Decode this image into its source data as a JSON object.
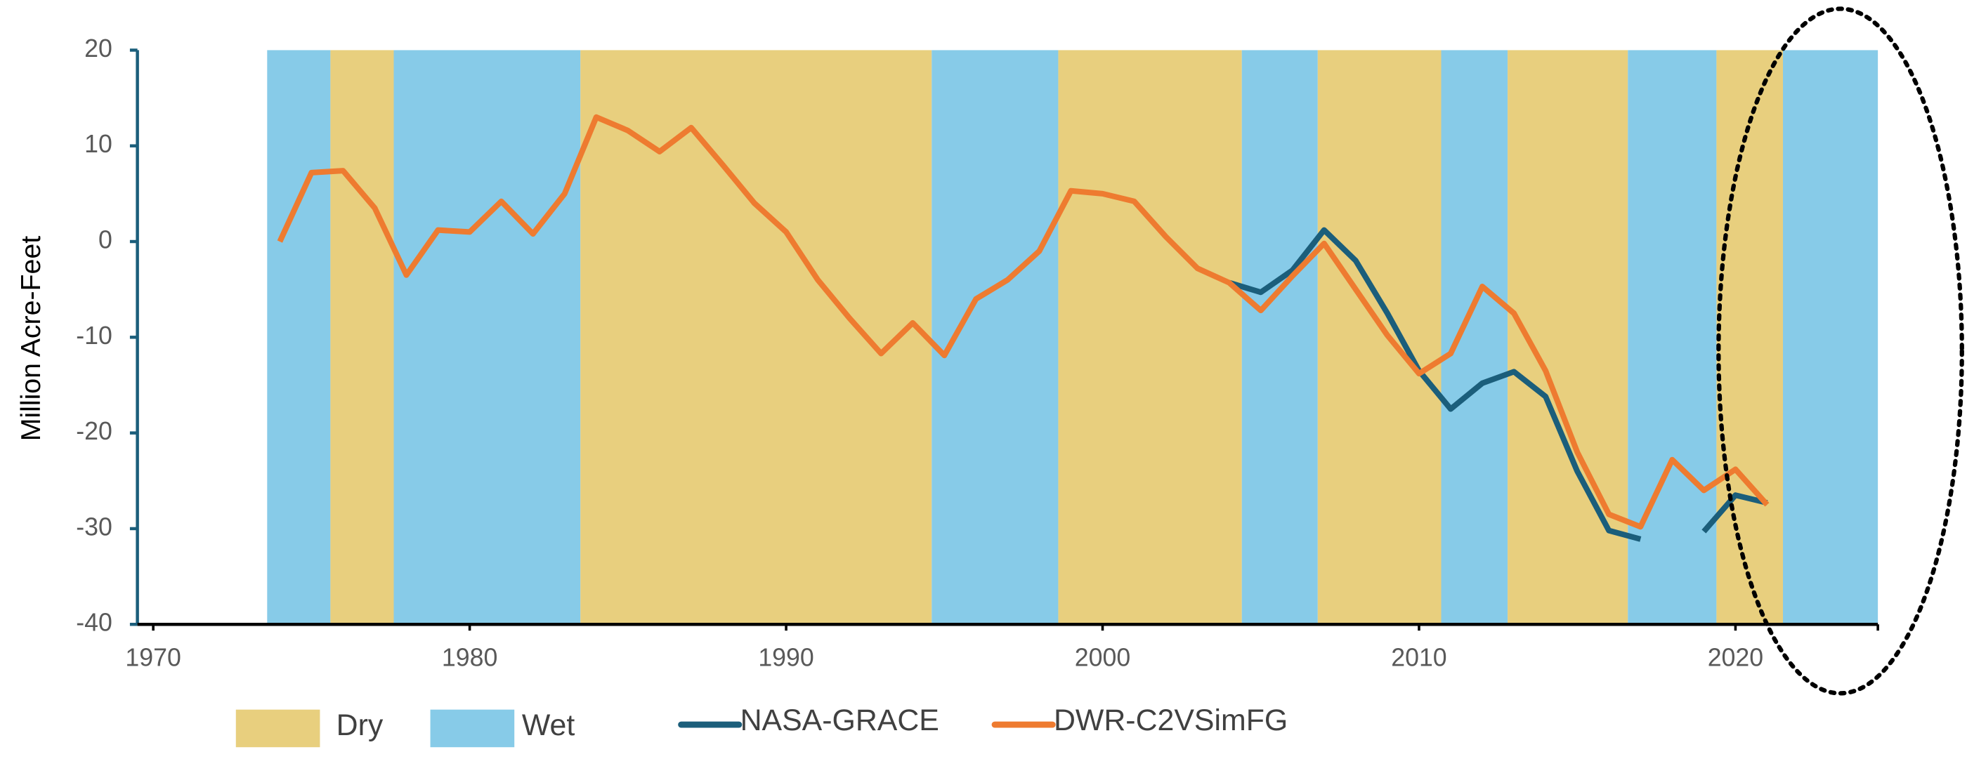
{
  "chart_data": {
    "type": "line",
    "y_label": "Million Acre-Feet",
    "x": [
      1974,
      1975,
      1976,
      1977,
      1978,
      1979,
      1980,
      1981,
      1982,
      1983,
      1984,
      1985,
      1986,
      1987,
      1988,
      1989,
      1990,
      1991,
      1992,
      1993,
      1994,
      1995,
      1996,
      1997,
      1998,
      1999,
      2000,
      2001,
      2002,
      2003,
      2004,
      2005,
      2006,
      2007,
      2008,
      2009,
      2010,
      2011,
      2012,
      2013,
      2014,
      2015,
      2016,
      2017,
      2018,
      2019,
      2020,
      2021
    ],
    "series": [
      {
        "name": "NASA-GRACE",
        "color": "#1b5e7b",
        "values": [
          null,
          null,
          null,
          null,
          null,
          null,
          null,
          null,
          null,
          null,
          null,
          null,
          null,
          null,
          null,
          null,
          null,
          null,
          null,
          null,
          null,
          null,
          null,
          null,
          null,
          null,
          null,
          null,
          null,
          null,
          -4.3,
          -5.3,
          -3.0,
          1.2,
          -2.0,
          -7.5,
          -13.5,
          -17.5,
          -14.8,
          -13.6,
          -16.2,
          -24.0,
          -30.2,
          -31.1,
          null,
          -30.3,
          -26.5,
          -27.3
        ]
      },
      {
        "name": "DWR-C2VSimFG",
        "color": "#ee7b30",
        "values": [
          0,
          7.2,
          7.4,
          3.5,
          -3.5,
          1.2,
          1.0,
          4.2,
          0.8,
          5.0,
          13.0,
          11.6,
          9.4,
          11.9,
          8.0,
          4.0,
          1.0,
          -4.0,
          -8.0,
          -11.7,
          -8.5,
          -11.9,
          -6.0,
          -4.0,
          -1.0,
          5.3,
          5.0,
          4.2,
          0.5,
          -2.8,
          -4.3,
          -7.2,
          -3.6,
          -0.2,
          -5.0,
          -9.8,
          -13.8,
          -11.7,
          -4.7,
          -7.5,
          -13.5,
          -22.0,
          -28.5,
          -29.8,
          -22.8,
          -26.0,
          -23.8,
          -27.5
        ]
      }
    ],
    "period_types": [
      {
        "name": "Dry",
        "color": "#e8cf7e"
      },
      {
        "name": "Wet",
        "color": "#87cbe8"
      }
    ],
    "periods": [
      {
        "start": 1973.6,
        "end": 1975.6,
        "type": 1
      },
      {
        "start": 1975.6,
        "end": 1977.6,
        "type": 0
      },
      {
        "start": 1977.6,
        "end": 1983.5,
        "type": 1
      },
      {
        "start": 1983.5,
        "end": 1994.6,
        "type": 0
      },
      {
        "start": 1994.6,
        "end": 1998.6,
        "type": 1
      },
      {
        "start": 1998.6,
        "end": 2004.4,
        "type": 0
      },
      {
        "start": 2004.4,
        "end": 2006.8,
        "type": 1
      },
      {
        "start": 2006.8,
        "end": 2010.7,
        "type": 0
      },
      {
        "start": 2010.7,
        "end": 2012.8,
        "type": 1
      },
      {
        "start": 2012.8,
        "end": 2016.6,
        "type": 0
      },
      {
        "start": 2016.6,
        "end": 2019.4,
        "type": 1
      },
      {
        "start": 2019.4,
        "end": 2021.5,
        "type": 0
      },
      {
        "start": 2021.5,
        "end": 2024.5,
        "type": 1
      }
    ],
    "xlim": [
      1969.5,
      2024.5
    ],
    "xticks": [
      1970,
      1980,
      1990,
      2000,
      2010,
      2020
    ],
    "ylim": [
      -40,
      20
    ],
    "yticks": [
      20,
      10,
      0,
      -10,
      -20,
      -30,
      -40
    ]
  }
}
